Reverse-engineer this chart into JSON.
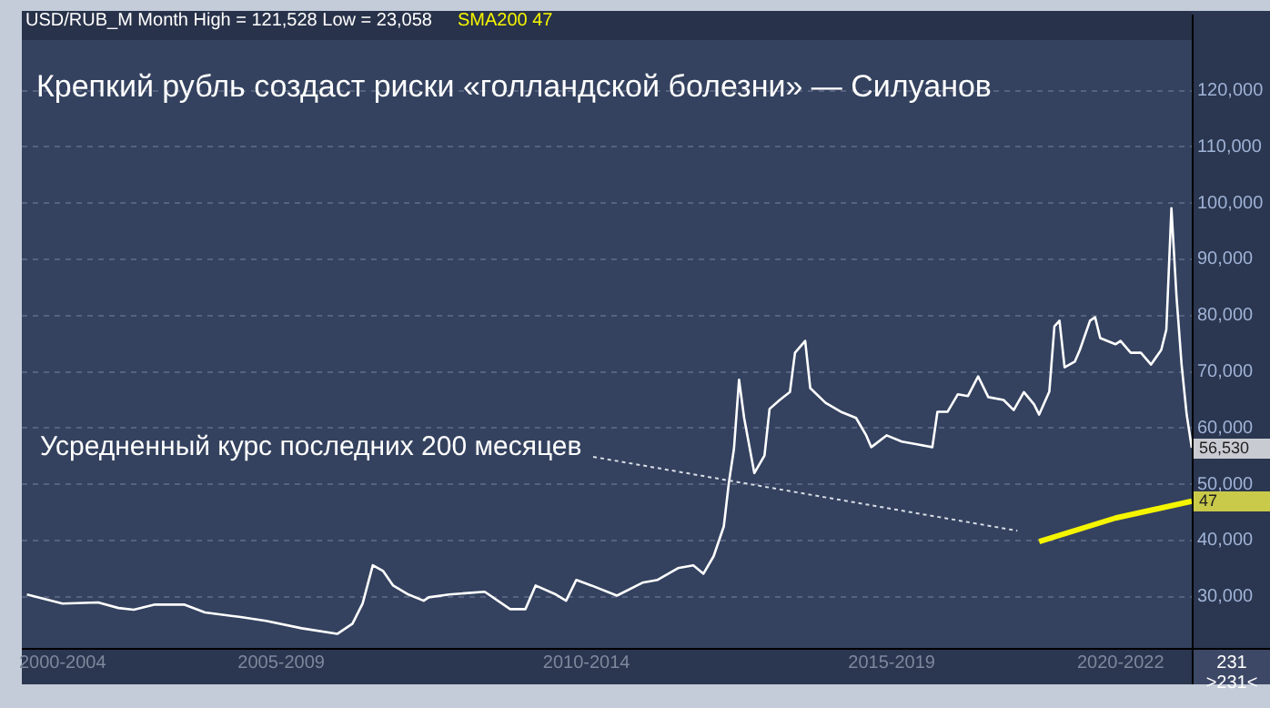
{
  "chart_data": {
    "type": "line",
    "title": "Крепкий рубль создаст риски «голландской болезни» — Силуанов",
    "subtitle": "USD/RUB_M Month High = 121,528 Low = 23,058",
    "categories": [
      null,
      null,
      null,
      null,
      null,
      null,
      null,
      null,
      "2000-2004",
      null,
      null,
      null,
      null,
      null,
      null,
      null,
      null,
      null,
      null,
      null,
      null,
      null,
      null,
      null,
      null,
      null,
      null,
      null,
      null,
      null,
      null,
      null,
      null,
      null,
      null,
      null,
      null,
      null,
      null,
      null,
      null,
      null,
      null,
      null,
      null,
      null,
      null,
      null,
      null,
      null,
      null,
      "2005-2009",
      null,
      null,
      null,
      null,
      null,
      null,
      null,
      null,
      null,
      null,
      null,
      null,
      null,
      null,
      null,
      null,
      null,
      null,
      null,
      null,
      null,
      null,
      null,
      null,
      null,
      null,
      null,
      null,
      null,
      null,
      null,
      null,
      null,
      null,
      null,
      null,
      null,
      null,
      null,
      null,
      null,
      null,
      null,
      null,
      null,
      null,
      null,
      null,
      null,
      null,
      null,
      null,
      null,
      null,
      null,
      null,
      null,
      null,
      null,
      "2010-2014",
      null,
      null,
      null,
      null,
      null,
      null,
      null,
      null,
      null,
      null,
      null,
      null,
      null,
      null,
      null,
      null,
      null,
      null,
      null,
      null,
      null,
      null,
      null,
      null,
      null,
      null,
      null,
      null,
      null,
      null,
      null,
      null,
      null,
      null,
      null,
      null,
      null,
      null,
      null,
      null,
      null,
      null,
      null,
      null,
      null,
      null,
      null,
      null,
      null,
      null,
      null,
      null,
      null,
      null,
      null,
      null,
      null,
      null,
      null,
      "2015-2019",
      null,
      null,
      null,
      null,
      null,
      null,
      null,
      null,
      null,
      null,
      null,
      null,
      null,
      null,
      null,
      null,
      null,
      null,
      null,
      null,
      null,
      null,
      null,
      null,
      null,
      null,
      null,
      null,
      null,
      null,
      null,
      null,
      null,
      null,
      null,
      null,
      null,
      null,
      null,
      null,
      null,
      null,
      null,
      null,
      "2020-2022",
      null,
      null,
      null,
      null,
      null,
      null,
      null,
      null,
      null,
      null,
      null,
      null,
      null,
      null
    ],
    "ylim": [
      20900,
      129000
    ],
    "yticks": [
      {
        "value": 30000,
        "label": "30,000"
      },
      {
        "value": 40000,
        "label": "40,000"
      },
      {
        "value": 50000,
        "label": "50,000"
      },
      {
        "value": 60000,
        "label": "60,000"
      },
      {
        "value": 70000,
        "label": "70,000"
      },
      {
        "value": 80000,
        "label": "80,000"
      },
      {
        "value": 90000,
        "label": "90,000"
      },
      {
        "value": 100000,
        "label": "100,000"
      },
      {
        "value": 110000,
        "label": "110,000"
      },
      {
        "value": 120000,
        "label": "120,000"
      }
    ],
    "grid": "y",
    "marker": "none",
    "line_style": "solid",
    "series": [
      {
        "color": "#ffffff",
        "values": [
          null,
          30400,
          null,
          null,
          null,
          null,
          null,
          null,
          28800,
          null,
          null,
          null,
          null,
          null,
          null,
          29000,
          null,
          null,
          null,
          28000,
          null,
          null,
          27700,
          null,
          null,
          null,
          28600,
          null,
          null,
          null,
          null,
          null,
          28600,
          null,
          null,
          null,
          27200,
          null,
          null,
          null,
          null,
          null,
          null,
          26400,
          null,
          null,
          null,
          null,
          25700,
          null,
          null,
          null,
          null,
          null,
          null,
          24400,
          null,
          null,
          null,
          null,
          null,
          null,
          23400,
          null,
          null,
          25200,
          null,
          28800,
          null,
          35600,
          null,
          34600,
          null,
          32000,
          null,
          null,
          30400,
          null,
          null,
          29300,
          29900,
          null,
          null,
          null,
          30400,
          null,
          null,
          null,
          null,
          null,
          null,
          30900,
          null,
          null,
          null,
          null,
          27800,
          null,
          null,
          27800,
          null,
          32000,
          null,
          null,
          null,
          30400,
          null,
          29300,
          null,
          33000,
          null,
          null,
          32000,
          null,
          null,
          null,
          null,
          30200,
          null,
          null,
          null,
          null,
          32500,
          null,
          null,
          33000,
          null,
          null,
          null,
          35100,
          null,
          null,
          35600,
          null,
          34100,
          null,
          37200,
          null,
          42500,
          50300,
          56300,
          68600,
          61800,
          null,
          52000,
          null,
          55100,
          63400,
          null,
          65000,
          null,
          66400,
          73400,
          null,
          75500,
          67100,
          null,
          null,
          64500,
          null,
          null,
          62900,
          null,
          null,
          61800,
          null,
          58700,
          56600,
          null,
          null,
          58700,
          null,
          null,
          57600,
          null,
          null,
          57100,
          null,
          null,
          56600,
          62900,
          null,
          62900,
          null,
          66000,
          null,
          65700,
          null,
          69200,
          null,
          65500,
          null,
          null,
          65000,
          null,
          63200,
          null,
          66400,
          null,
          64200,
          62400,
          null,
          66500,
          78100,
          79100,
          70800,
          null,
          71800,
          73900,
          null,
          79100,
          79700,
          76000,
          null,
          null,
          74900,
          75500,
          null,
          73400,
          null,
          73400,
          null,
          71300,
          null,
          73900,
          77500,
          99100,
          83400,
          71300,
          62400,
          56500
        ]
      },
      {
        "name": "SMA200",
        "color": "#f5f500",
        "values": [
          null,
          null,
          null,
          null,
          null,
          null,
          null,
          null,
          null,
          null,
          null,
          null,
          null,
          null,
          null,
          null,
          null,
          null,
          null,
          null,
          null,
          null,
          null,
          null,
          null,
          null,
          null,
          null,
          null,
          null,
          null,
          null,
          null,
          null,
          null,
          null,
          null,
          null,
          null,
          null,
          null,
          null,
          null,
          null,
          null,
          null,
          null,
          null,
          null,
          null,
          null,
          null,
          null,
          null,
          null,
          null,
          null,
          null,
          null,
          null,
          null,
          null,
          null,
          null,
          null,
          null,
          null,
          null,
          null,
          null,
          null,
          null,
          null,
          null,
          null,
          null,
          null,
          null,
          null,
          null,
          null,
          null,
          null,
          null,
          null,
          null,
          null,
          null,
          null,
          null,
          null,
          null,
          null,
          null,
          null,
          null,
          null,
          null,
          null,
          null,
          null,
          null,
          null,
          null,
          null,
          null,
          null,
          null,
          null,
          null,
          null,
          null,
          null,
          null,
          null,
          null,
          null,
          null,
          null,
          null,
          null,
          null,
          null,
          null,
          null,
          null,
          null,
          null,
          null,
          null,
          null,
          null,
          null,
          null,
          null,
          null,
          null,
          null,
          null,
          null,
          null,
          null,
          null,
          null,
          null,
          null,
          null,
          null,
          null,
          null,
          null,
          null,
          null,
          null,
          null,
          null,
          null,
          null,
          null,
          null,
          null,
          null,
          null,
          null,
          null,
          null,
          null,
          null,
          null,
          null,
          null,
          null,
          null,
          null,
          null,
          null,
          null,
          null,
          null,
          null,
          null,
          null,
          null,
          null,
          null,
          null,
          null,
          null,
          null,
          null,
          null,
          null,
          null,
          null,
          null,
          null,
          null,
          null,
          null,
          null,
          39800,
          null,
          null,
          null,
          null,
          null,
          null,
          null,
          null,
          null,
          null,
          null,
          null,
          null,
          null,
          44000,
          null,
          null,
          null,
          null,
          null,
          null,
          null,
          null,
          null,
          null,
          null,
          null,
          null,
          null,
          47000
        ]
      }
    ],
    "annotations": [
      "Усредненный курс последних 200 месяцев",
      "56,530",
      "47",
      "47",
      "231",
      ">231<"
    ]
  }
}
